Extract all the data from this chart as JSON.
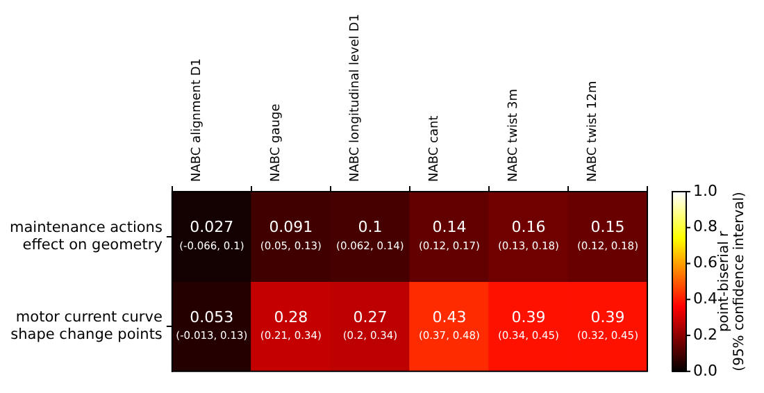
{
  "chart_data": {
    "type": "heatmap",
    "categories": [
      "NABC alignment D1",
      "NABC gauge",
      "NABC longitudinal level D1",
      "NABC cant",
      "NABC twist 3m",
      "NABC twist 12m"
    ],
    "y_categories": [
      "maintenance actions effect on geometry",
      "motor current curve shape change points"
    ],
    "cells": [
      [
        0.027,
        0.091,
        0.1,
        0.14,
        0.16,
        0.15
      ],
      [
        0.053,
        0.28,
        0.27,
        0.43,
        0.39,
        0.39
      ]
    ],
    "cell_labels": [
      [
        "0.027\n(-0.066, 0.1)",
        "0.091\n(0.05, 0.13)",
        "0.1\n(0.062, 0.14)",
        "0.14\n(0.12, 0.17)",
        "0.16\n(0.13, 0.18)",
        "0.15\n(0.12, 0.18)"
      ],
      [
        "0.053\n(-0.013, 0.13)",
        "0.28\n(0.21, 0.34)",
        "0.27\n(0.2, 0.34)",
        "0.43\n(0.37, 0.48)",
        "0.39\n(0.34, 0.45)",
        "0.39\n(0.32, 0.45)"
      ]
    ],
    "clabel": "point-biserial r (95% confidence interval)",
    "clim": [
      0,
      1
    ],
    "cticks": [
      {
        "value": 0,
        "label": "0.0"
      },
      {
        "value": 0.2,
        "label": "0.2"
      },
      {
        "value": 0.4,
        "label": "0.4"
      },
      {
        "value": 0.6,
        "label": "0.6"
      },
      {
        "value": 0.8,
        "label": "0.8"
      },
      {
        "value": 1,
        "label": "1.0"
      }
    ]
  }
}
